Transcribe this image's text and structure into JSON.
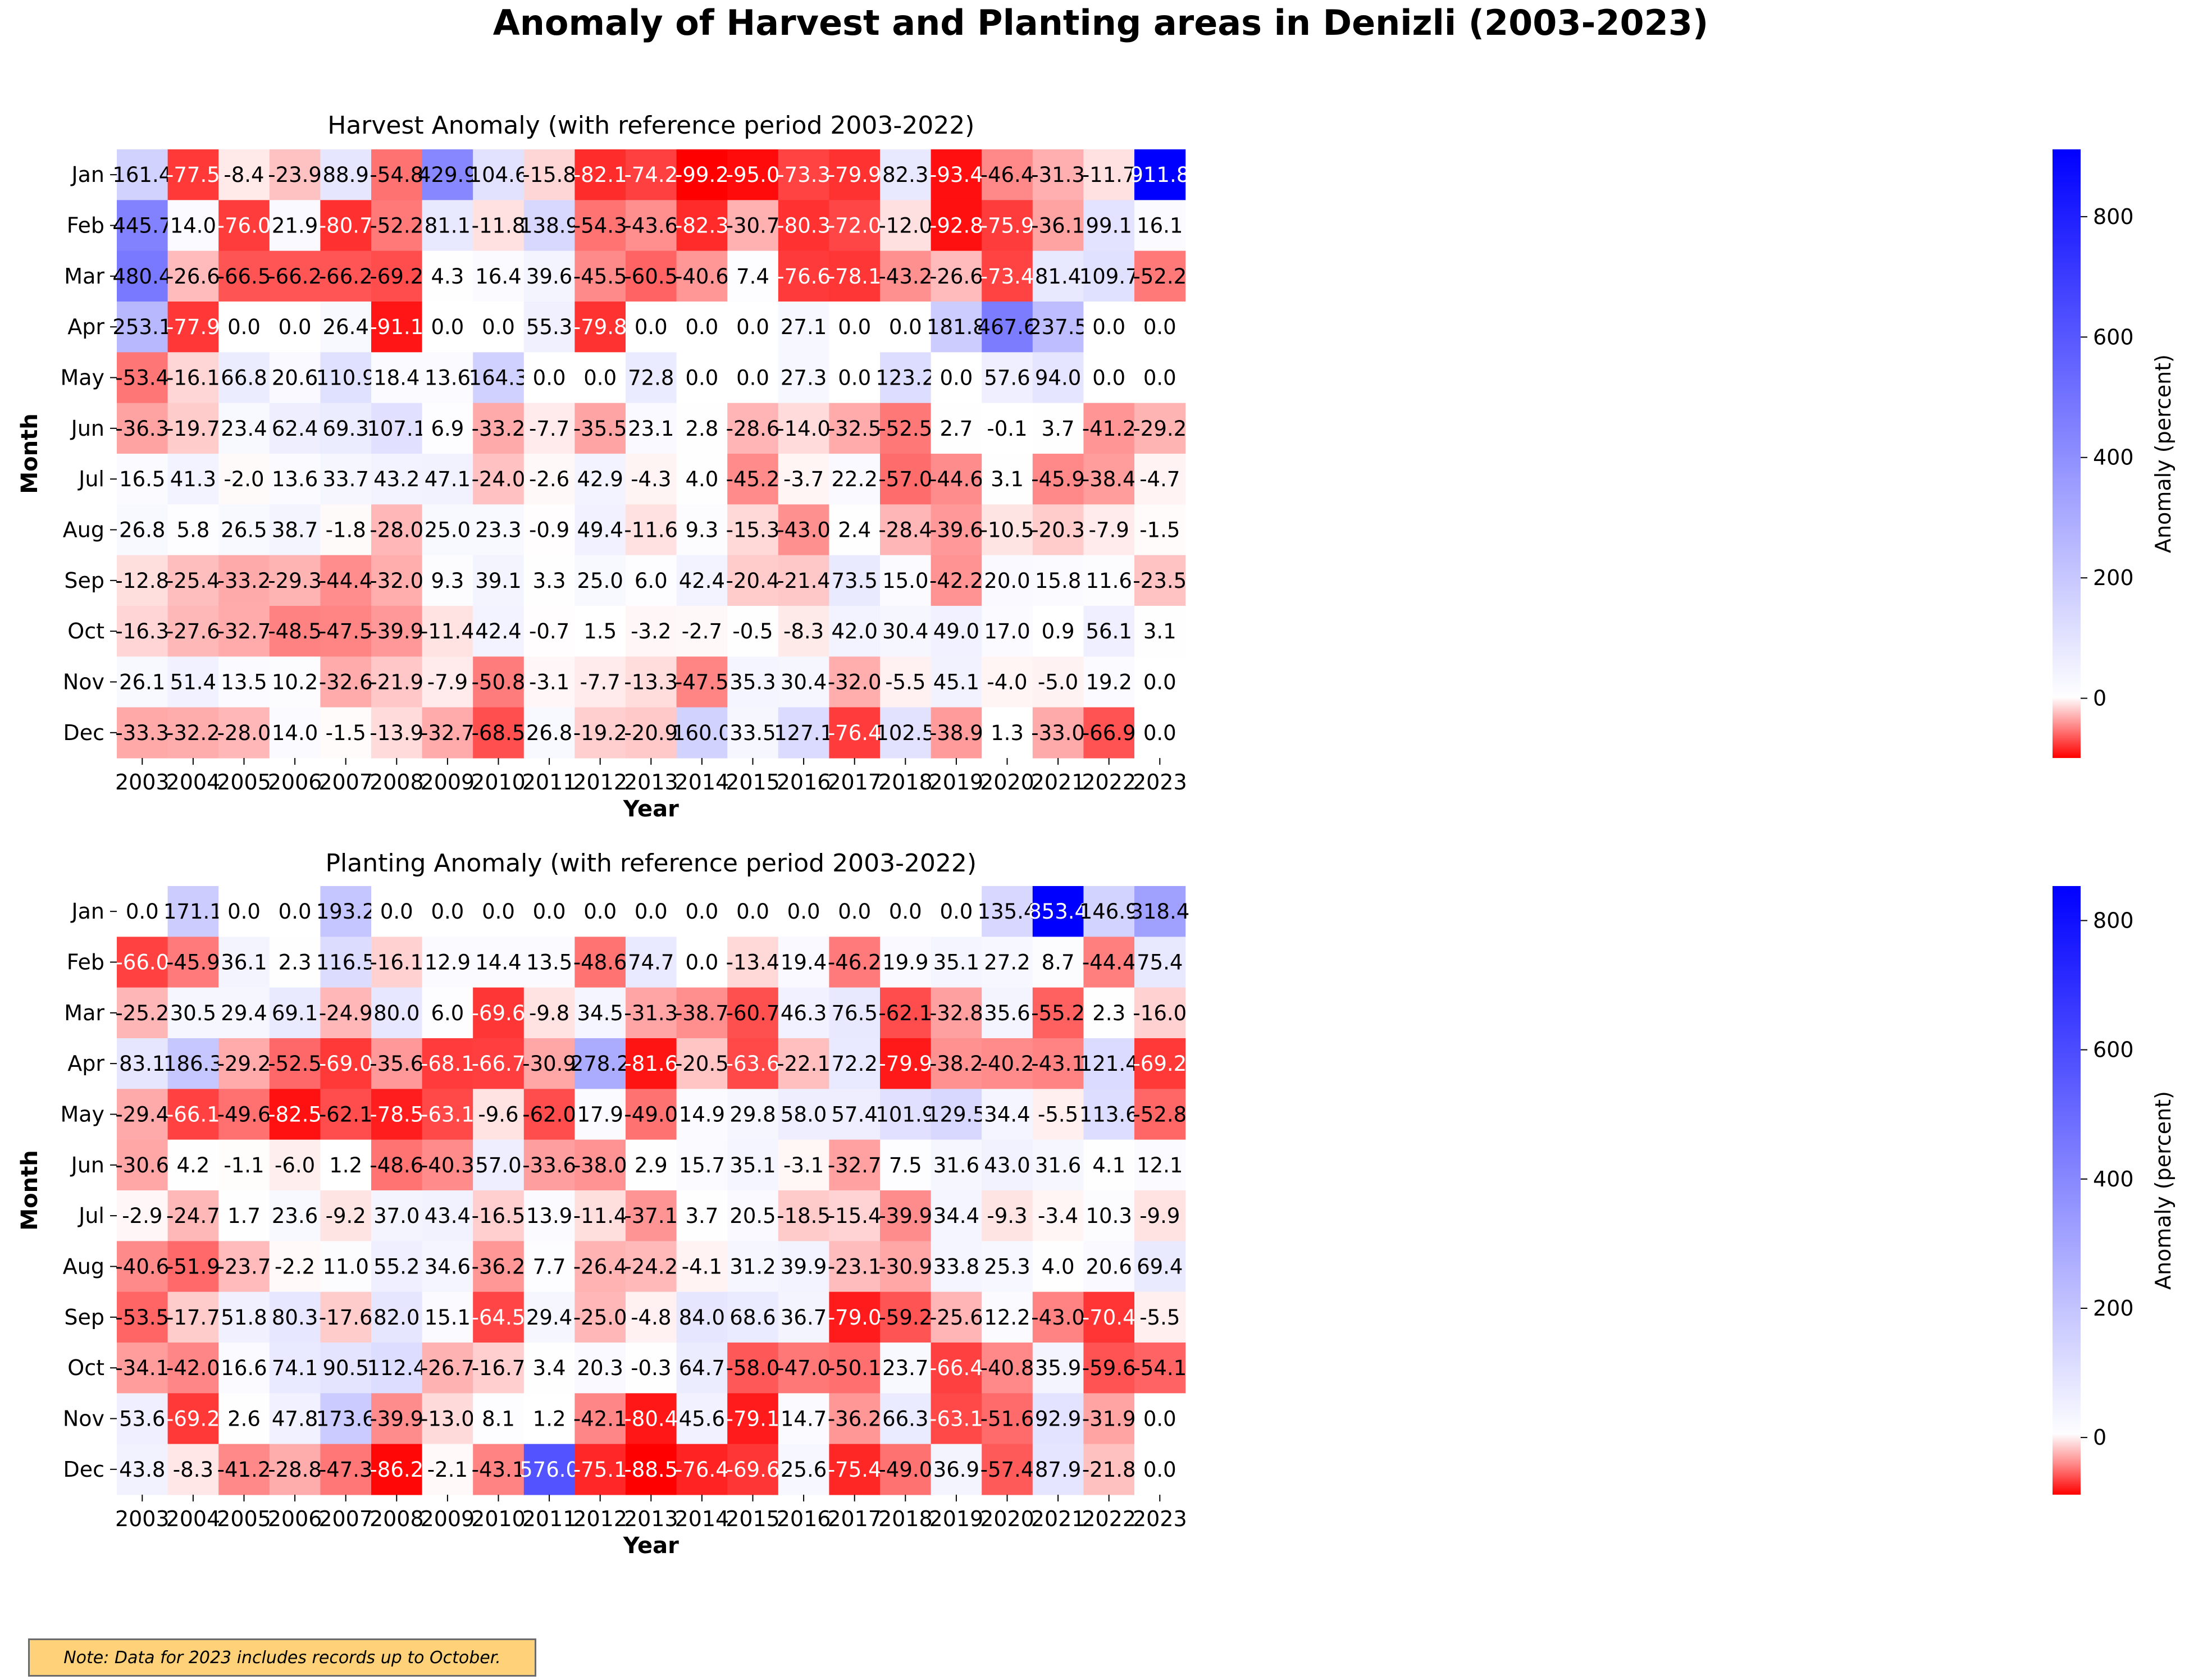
{
  "chart_data": {
    "title": "Anomaly of Harvest and Planting areas in Denizli (2003-2023)",
    "note": "Note: Data for 2023 includes records up to October.",
    "panels": [
      {
        "type": "heatmap",
        "title": "Harvest Anomaly (with reference period 2003-2022)",
        "xlabel": "Year",
        "ylabel": "Month",
        "colorbar_label": "Anomaly (percent)",
        "colorbar_ticks": [
          0,
          200,
          400,
          600,
          800
        ],
        "vmin": -99.2,
        "vmax": 911.8,
        "x": [
          "2003",
          "2004",
          "2005",
          "2006",
          "2007",
          "2008",
          "2009",
          "2010",
          "2011",
          "2012",
          "2013",
          "2014",
          "2015",
          "2016",
          "2017",
          "2018",
          "2019",
          "2020",
          "2021",
          "2022",
          "2023"
        ],
        "y": [
          "Jan",
          "Feb",
          "Mar",
          "Apr",
          "May",
          "Jun",
          "Jul",
          "Aug",
          "Sep",
          "Oct",
          "Nov",
          "Dec"
        ],
        "values": [
          [
            161.4,
            -77.5,
            -8.4,
            -23.9,
            88.9,
            -54.8,
            429.9,
            104.6,
            -15.8,
            -82.1,
            -74.2,
            -99.2,
            -95.0,
            -73.3,
            -79.9,
            82.3,
            -93.4,
            -46.4,
            -31.3,
            -11.7,
            911.8
          ],
          [
            445.7,
            14.0,
            -76.0,
            21.9,
            -80.7,
            -52.2,
            81.1,
            -11.8,
            138.9,
            -54.3,
            -43.6,
            -82.3,
            -30.7,
            -80.3,
            -72.0,
            -12.0,
            -92.8,
            -75.9,
            -36.1,
            99.1,
            16.1
          ],
          [
            480.4,
            -26.6,
            -66.5,
            -66.2,
            -66.2,
            -69.2,
            4.3,
            16.4,
            39.6,
            -45.5,
            -60.5,
            -40.6,
            7.4,
            -76.6,
            -78.1,
            -43.2,
            -26.6,
            -73.4,
            81.4,
            109.7,
            -52.2
          ],
          [
            253.1,
            -77.9,
            0.0,
            0.0,
            26.4,
            -91.1,
            0.0,
            0.0,
            55.3,
            -79.8,
            0.0,
            0.0,
            0.0,
            27.1,
            0.0,
            0.0,
            181.8,
            467.6,
            237.5,
            0.0,
            0.0
          ],
          [
            -53.4,
            -16.1,
            66.8,
            20.6,
            110.9,
            18.4,
            13.6,
            164.3,
            0.0,
            0.0,
            72.8,
            0.0,
            0.0,
            27.3,
            0.0,
            123.2,
            0.0,
            57.6,
            94.0,
            0.0,
            0.0
          ],
          [
            -36.3,
            -19.7,
            23.4,
            62.4,
            69.3,
            107.1,
            6.9,
            -33.2,
            -7.7,
            -35.5,
            23.1,
            2.8,
            -28.6,
            -14.0,
            -32.5,
            -52.5,
            2.7,
            -0.1,
            3.7,
            -41.2,
            -29.2
          ],
          [
            16.5,
            41.3,
            -2.0,
            13.6,
            33.7,
            43.2,
            47.1,
            -24.0,
            -2.6,
            42.9,
            -4.3,
            4.0,
            -45.2,
            -3.7,
            22.2,
            -57.0,
            -44.6,
            3.1,
            -45.9,
            -38.4,
            -4.7
          ],
          [
            26.8,
            5.8,
            26.5,
            38.7,
            -1.8,
            -28.0,
            25.0,
            23.3,
            -0.9,
            49.4,
            -11.6,
            9.3,
            -15.3,
            -43.0,
            2.4,
            -28.4,
            -39.6,
            -10.5,
            -20.3,
            -7.9,
            -1.5
          ],
          [
            -12.8,
            -25.4,
            -33.2,
            -29.3,
            -44.4,
            -32.0,
            9.3,
            39.1,
            3.3,
            25.0,
            6.0,
            42.4,
            -20.4,
            -21.4,
            73.5,
            15.0,
            -42.2,
            20.0,
            15.8,
            11.6,
            -23.5
          ],
          [
            -16.3,
            -27.6,
            -32.7,
            -48.5,
            -47.5,
            -39.9,
            -11.4,
            42.4,
            -0.7,
            1.5,
            -3.2,
            -2.7,
            -0.5,
            -8.3,
            42.0,
            30.4,
            49.0,
            17.0,
            0.9,
            56.1,
            3.1
          ],
          [
            26.1,
            51.4,
            13.5,
            10.2,
            -32.6,
            -21.9,
            -7.9,
            -50.8,
            -3.1,
            -7.7,
            -13.3,
            -47.5,
            35.3,
            30.4,
            -32.0,
            -5.5,
            45.1,
            -4.0,
            -5.0,
            19.2,
            0.0
          ],
          [
            -33.3,
            -32.2,
            -28.0,
            14.0,
            -1.5,
            -13.9,
            -32.7,
            -68.5,
            26.8,
            -19.2,
            -20.9,
            160.0,
            33.5,
            127.1,
            -76.4,
            102.5,
            -38.9,
            1.3,
            -33.0,
            -66.9,
            0.0
          ]
        ]
      },
      {
        "type": "heatmap",
        "title": "Planting Anomaly (with reference period 2003-2022)",
        "xlabel": "Year",
        "ylabel": "Month",
        "colorbar_label": "Anomaly (percent)",
        "colorbar_ticks": [
          0,
          200,
          400,
          600,
          800
        ],
        "vmin": -88.5,
        "vmax": 853.4,
        "x": [
          "2003",
          "2004",
          "2005",
          "2006",
          "2007",
          "2008",
          "2009",
          "2010",
          "2011",
          "2012",
          "2013",
          "2014",
          "2015",
          "2016",
          "2017",
          "2018",
          "2019",
          "2020",
          "2021",
          "2022",
          "2023"
        ],
        "y": [
          "Jan",
          "Feb",
          "Mar",
          "Apr",
          "May",
          "Jun",
          "Jul",
          "Aug",
          "Sep",
          "Oct",
          "Nov",
          "Dec"
        ],
        "values": [
          [
            0.0,
            171.1,
            0.0,
            0.0,
            193.2,
            0.0,
            0.0,
            0.0,
            0.0,
            0.0,
            0.0,
            0.0,
            0.0,
            0.0,
            0.0,
            0.0,
            0.0,
            135.4,
            853.4,
            146.9,
            318.4
          ],
          [
            -66.0,
            -45.9,
            36.1,
            2.3,
            116.5,
            -16.1,
            12.9,
            14.4,
            13.5,
            -48.6,
            74.7,
            0.0,
            -13.4,
            19.4,
            -46.2,
            19.9,
            35.1,
            27.2,
            8.7,
            -44.4,
            75.4
          ],
          [
            -25.2,
            30.5,
            29.4,
            69.1,
            -24.9,
            80.0,
            6.0,
            -69.6,
            -9.8,
            34.5,
            -31.3,
            -38.7,
            -60.7,
            46.3,
            76.5,
            -62.1,
            -32.8,
            35.6,
            -55.2,
            2.3,
            -16.0
          ],
          [
            83.1,
            186.3,
            -29.2,
            -52.5,
            -69.0,
            -35.6,
            -68.1,
            -66.7,
            -30.9,
            278.2,
            -81.6,
            -20.5,
            -63.6,
            -22.1,
            72.2,
            -79.9,
            -38.2,
            -40.2,
            -43.1,
            121.4,
            -69.2
          ],
          [
            -29.4,
            -66.1,
            -49.6,
            -82.5,
            -62.1,
            -78.5,
            -63.1,
            -9.6,
            -62.0,
            17.9,
            -49.0,
            14.9,
            29.8,
            58.0,
            57.4,
            101.9,
            129.5,
            34.4,
            -5.5,
            113.6,
            -52.8
          ],
          [
            -30.6,
            4.2,
            -1.1,
            -6.0,
            1.2,
            -48.6,
            -40.3,
            57.0,
            -33.6,
            -38.0,
            2.9,
            15.7,
            35.1,
            -3.1,
            -32.7,
            7.5,
            31.6,
            43.0,
            31.6,
            4.1,
            12.1
          ],
          [
            -2.9,
            -24.7,
            1.7,
            23.6,
            -9.2,
            37.0,
            43.4,
            -16.5,
            13.9,
            -11.4,
            -37.1,
            3.7,
            20.5,
            -18.5,
            -15.4,
            -39.9,
            34.4,
            -9.3,
            -3.4,
            10.3,
            -9.9
          ],
          [
            -40.6,
            -51.9,
            -23.7,
            -2.2,
            11.0,
            55.2,
            34.6,
            -36.2,
            7.7,
            -26.4,
            -24.2,
            -4.1,
            31.2,
            39.9,
            -23.1,
            -30.9,
            33.8,
            25.3,
            4.0,
            20.6,
            69.4
          ],
          [
            -53.5,
            -17.7,
            51.8,
            80.3,
            -17.6,
            82.0,
            15.1,
            -64.5,
            29.4,
            -25.0,
            -4.8,
            84.0,
            68.6,
            36.7,
            -79.0,
            -59.2,
            -25.6,
            12.2,
            -43.0,
            -70.4,
            -5.5
          ],
          [
            -34.1,
            -42.0,
            16.6,
            74.1,
            90.5,
            112.4,
            -26.7,
            -16.7,
            3.4,
            20.3,
            -0.3,
            64.7,
            -58.0,
            -47.0,
            -50.1,
            23.7,
            -66.4,
            -40.8,
            35.9,
            -59.6,
            -54.1
          ],
          [
            53.6,
            -69.2,
            2.6,
            47.8,
            173.6,
            -39.9,
            -13.0,
            8.1,
            1.2,
            -42.1,
            -80.4,
            45.6,
            -79.1,
            14.7,
            -36.2,
            66.3,
            -63.1,
            -51.6,
            92.9,
            -31.9,
            0.0
          ],
          [
            43.8,
            -8.3,
            -41.2,
            -28.8,
            -47.3,
            -86.2,
            -2.1,
            -43.1,
            576.0,
            -75.1,
            -88.5,
            -76.4,
            -69.6,
            25.6,
            -75.4,
            -49.0,
            36.9,
            -57.4,
            87.9,
            -21.8,
            0.0
          ]
        ]
      }
    ],
    "colors": {
      "negative": "#ff0000",
      "zero": "#ffffff",
      "positive": "#0000ff"
    }
  }
}
